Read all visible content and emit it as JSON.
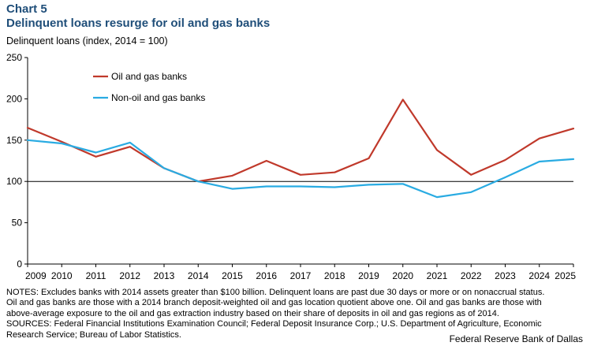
{
  "header": {
    "chart_number": "Chart 5",
    "title": "Delinquent loans resurge for oil and gas banks",
    "ylabel": "Delinquent loans (index, 2014 = 100)"
  },
  "colors": {
    "oil": "#c0392b",
    "nonoil": "#29abe2",
    "reference_line": "#000000",
    "title": "#1f4e79"
  },
  "chart_data": {
    "type": "line",
    "title": "Delinquent loans resurge for oil and gas banks",
    "ylabel": "Delinquent loans (index, 2014 = 100)",
    "xlabel": "",
    "x": [
      "2009",
      "2010",
      "2011",
      "2012",
      "2013",
      "2014",
      "2015",
      "2016",
      "2017",
      "2018",
      "2019",
      "2020",
      "2021",
      "2022",
      "2023",
      "2024",
      "2025"
    ],
    "series": [
      {
        "name": "Oil and gas banks",
        "values": [
          165,
          148,
          130,
          142,
          116,
          100,
          107,
          125,
          108,
          111,
          128,
          199,
          138,
          108,
          126,
          152,
          164
        ]
      },
      {
        "name": "Non-oil and gas banks",
        "values": [
          150,
          146,
          135,
          147,
          116,
          100,
          91,
          94,
          94,
          93,
          96,
          97,
          81,
          87,
          105,
          124,
          127
        ]
      }
    ],
    "ylim": [
      0,
      250
    ],
    "yticks": [
      0,
      50,
      100,
      150,
      200,
      250
    ],
    "reference_line": 100,
    "legend_position": "top-left",
    "grid": false
  },
  "notes": {
    "lines": [
      "NOTES: Excludes banks with 2014 assets greater than $100 billion. Delinquent loans are past due 30 days or more or on nonaccrual status.",
      "Oil and gas banks are those with a 2014 branch deposit-weighted oil and gas location quotient above one. Oil and gas banks are those with",
      "above-average exposure to the oil and gas extraction industry based on their share of deposits in oil and gas regions as of 2014.",
      "SOURCES: Federal Financial Institutions Examination Council; Federal Deposit Insurance Corp.; U.S. Department of Agriculture, Economic",
      "Research Service; Bureau of Labor Statistics."
    ]
  },
  "credit": "Federal Reserve Bank of Dallas"
}
